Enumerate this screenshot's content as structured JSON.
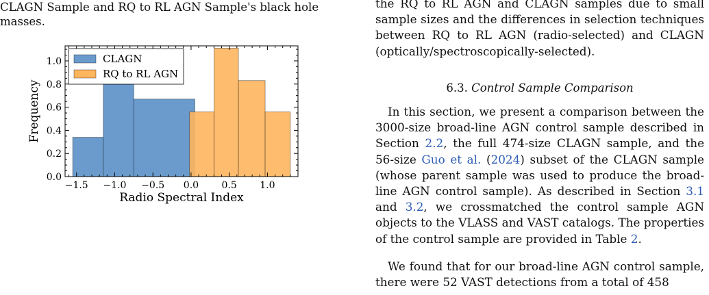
{
  "caption": {
    "text": "CLAGN Sample and RQ to RL AGN Sample's black hole masses."
  },
  "right_column": {
    "continuation": "the RQ to RL AGN and CLAGN samples due to small sample sizes and the differences in selection techniques between RQ to RL AGN (radio-selected) and CLAGN (optically/spectroscopically-selected).",
    "section_number": "6.3.",
    "section_title": "Control Sample Comparison",
    "p1": {
      "t1": "In this section, we present a comparison between the 3000-size broad-line AGN control sample described in Section ",
      "r1": "2.2",
      "t2": ", the full 474-size CLAGN sample, and the 56-size ",
      "r2": "Guo et al.",
      "t3": " (",
      "r3": "2024",
      "t4": ") subset of the CLAGN sample (whose parent sample was used to produce the broad-line AGN control sample). As described in Section ",
      "r4": "3.1",
      "t5": " and  ",
      "r5": "3.2",
      "t6": ", we crossmatched the control sample AGN objects to the VLASS and VAST catalogs. The properties of the control sample are provided in Table ",
      "r6": "2",
      "t7": "."
    },
    "p2": "We found that for our broad-line AGN control sample, there were 52 VAST detections from a total of 458"
  },
  "chart_data": {
    "type": "bar",
    "xlabel": "Radio Spectral Index",
    "ylabel": "Frequency",
    "xlim": [
      -1.65,
      1.4
    ],
    "ylim": [
      0,
      1.13
    ],
    "xticks": [
      -1.5,
      -1.0,
      -0.5,
      0.0,
      0.5,
      1.0
    ],
    "xtick_labels": [
      "−1.5",
      "−1.0",
      "−0.5",
      "0.0",
      "0.5",
      "1.0"
    ],
    "yticks": [
      0.0,
      0.2,
      0.4,
      0.6,
      0.8,
      1.0
    ],
    "ytick_labels": [
      "0.0",
      "0.2",
      "0.4",
      "0.6",
      "0.8",
      "1.0"
    ],
    "legend_position": "top-left",
    "grid": false,
    "series": [
      {
        "name": "CLAGN",
        "color": "#6a9bcc",
        "bins": [
          {
            "x0": -1.55,
            "x1": -1.15,
            "value": 0.34
          },
          {
            "x0": -1.15,
            "x1": -0.75,
            "value": 0.84
          },
          {
            "x0": -0.75,
            "x1": 0.05,
            "value": 0.67
          }
        ]
      },
      {
        "name": "RQ to RL AGN",
        "color": "#fdb55e",
        "bins": [
          {
            "x0": -0.02,
            "x1": 0.3,
            "value": 0.56
          },
          {
            "x0": 0.3,
            "x1": 0.62,
            "value": 1.11
          },
          {
            "x0": 0.62,
            "x1": 0.97,
            "value": 0.83
          },
          {
            "x0": 0.97,
            "x1": 1.3,
            "value": 0.56
          }
        ]
      }
    ]
  }
}
